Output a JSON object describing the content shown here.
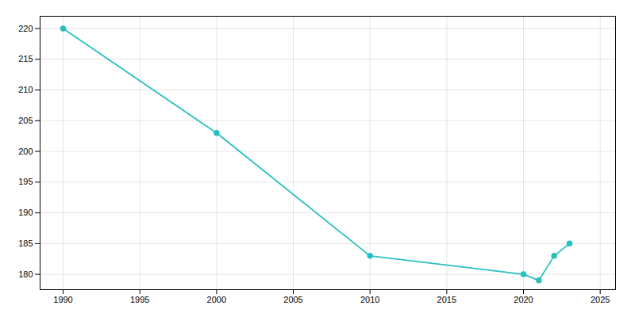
{
  "chart_data": {
    "type": "line",
    "x": [
      1990,
      2000,
      2010,
      2020,
      2021,
      2022,
      2023
    ],
    "values": [
      220,
      203,
      183,
      180,
      179,
      183,
      185
    ],
    "color": "#2abfbf",
    "marker": "circle",
    "xlim": [
      1988.5,
      2026
    ],
    "ylim": [
      177.5,
      222
    ],
    "xticks": [
      1990,
      1995,
      2000,
      2005,
      2010,
      2015,
      2020,
      2025
    ],
    "yticks": [
      180,
      185,
      190,
      195,
      200,
      205,
      210,
      215,
      220
    ],
    "grid": true
  }
}
